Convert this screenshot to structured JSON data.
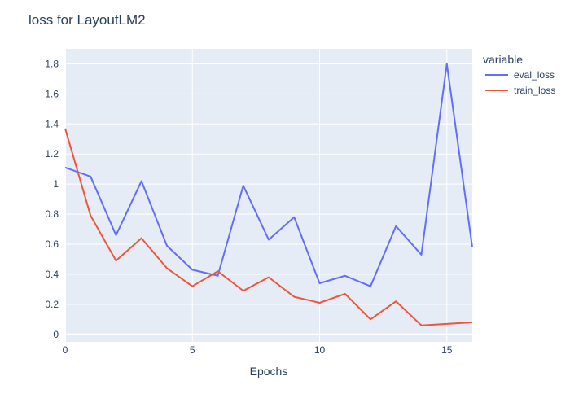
{
  "chart_data": {
    "type": "line",
    "title": "loss for LayoutLM2",
    "xlabel": "Epochs",
    "ylabel": "",
    "xlim": [
      0,
      16
    ],
    "ylim": [
      -0.05,
      1.9
    ],
    "x_ticks": [
      0,
      5,
      10,
      15
    ],
    "y_ticks": [
      0,
      0.2,
      0.4,
      0.6,
      0.8,
      1,
      1.2,
      1.4,
      1.6,
      1.8
    ],
    "x_tick_labels": [
      "0",
      "5",
      "10",
      "15"
    ],
    "y_tick_labels": [
      "0",
      "0.2",
      "0.4",
      "0.6",
      "0.8",
      "1",
      "1.2",
      "1.4",
      "1.6",
      "1.8"
    ],
    "grid": true,
    "legend": {
      "title": "variable",
      "placement": "top-right"
    },
    "x": [
      0,
      1,
      2,
      3,
      4,
      5,
      6,
      7,
      8,
      9,
      10,
      11,
      12,
      13,
      14,
      15,
      16
    ],
    "series": [
      {
        "name": "eval_loss",
        "color": "#636efa",
        "values": [
          1.11,
          1.05,
          0.66,
          1.02,
          0.59,
          0.43,
          0.39,
          0.99,
          0.63,
          0.78,
          0.34,
          0.39,
          0.32,
          0.72,
          0.53,
          1.8,
          0.58
        ]
      },
      {
        "name": "train_loss",
        "color": "#ef553b",
        "values": [
          1.37,
          0.79,
          0.49,
          0.64,
          0.44,
          0.32,
          0.42,
          0.29,
          0.38,
          0.25,
          0.21,
          0.27,
          0.1,
          0.22,
          0.06,
          0.07,
          0.08
        ]
      }
    ]
  }
}
